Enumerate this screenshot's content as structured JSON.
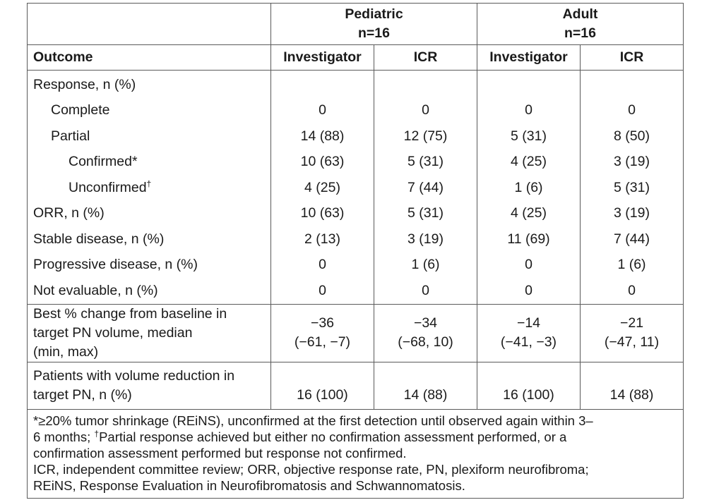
{
  "groups": [
    {
      "name": "Pediatric",
      "n": "n=16"
    },
    {
      "name": "Adult",
      "n": "n=16"
    }
  ],
  "header": {
    "outcome": "Outcome",
    "investigator": "Investigator",
    "icr": "ICR"
  },
  "rows": [
    {
      "label": "Response, n (%)",
      "values": [
        "",
        "",
        "",
        ""
      ]
    },
    {
      "label": "Complete",
      "values": [
        "0",
        "0",
        "0",
        "0"
      ]
    },
    {
      "label": "Partial",
      "values": [
        "14 (88)",
        "12 (75)",
        "5 (31)",
        "8 (50)"
      ]
    },
    {
      "label": "Confirmed*",
      "values": [
        "10 (63)",
        "5 (31)",
        "4 (25)",
        "3 (19)"
      ]
    },
    {
      "label": "Unconfirmed",
      "sup": "†",
      "values": [
        "4 (25)",
        "7 (44)",
        "1 (6)",
        "5 (31)"
      ]
    },
    {
      "label": "ORR, n (%)",
      "values": [
        "10 (63)",
        "5 (31)",
        "4 (25)",
        "3 (19)"
      ]
    },
    {
      "label": "Stable disease, n (%)",
      "values": [
        "2 (13)",
        "3 (19)",
        "11 (69)",
        "7 (44)"
      ]
    },
    {
      "label": "Progressive disease, n (%)",
      "values": [
        "0",
        "1 (6)",
        "0",
        "1 (6)"
      ]
    },
    {
      "label": "Not evaluable, n (%)",
      "values": [
        "0",
        "0",
        "0",
        "0"
      ]
    }
  ],
  "best_change": {
    "label_lines": [
      "Best % change from baseline in",
      "target PN volume, median",
      "(min, max)"
    ],
    "medians": [
      "−36",
      "−34",
      "−14",
      "−21"
    ],
    "ranges": [
      "(−61, −7)",
      "(−68, 10)",
      "(−41, −3)",
      "(−47, 11)"
    ]
  },
  "volume_reduction": {
    "label_lines": [
      "Patients with volume reduction in",
      "target PN, n (%)"
    ],
    "values": [
      "16 (100)",
      "14 (88)",
      "16 (100)",
      "14 (88)"
    ]
  },
  "footnotes": {
    "line1_a": "*≥20% tumor shrinkage (REiNS), unconfirmed at the first detection until observed again within 3–",
    "line2_a": "6 months; ",
    "line2_sup": "†",
    "line2_b": "Partial response achieved but either no confirmation assessment performed, or a",
    "line3": "confirmation assessment performed but response not confirmed.",
    "line4": "ICR, independent committee review; ORR, objective response rate, PN, plexiform neurofibroma;",
    "line5": "REiNS, Response Evaluation in Neurofibromatosis and Schwannomatosis."
  }
}
